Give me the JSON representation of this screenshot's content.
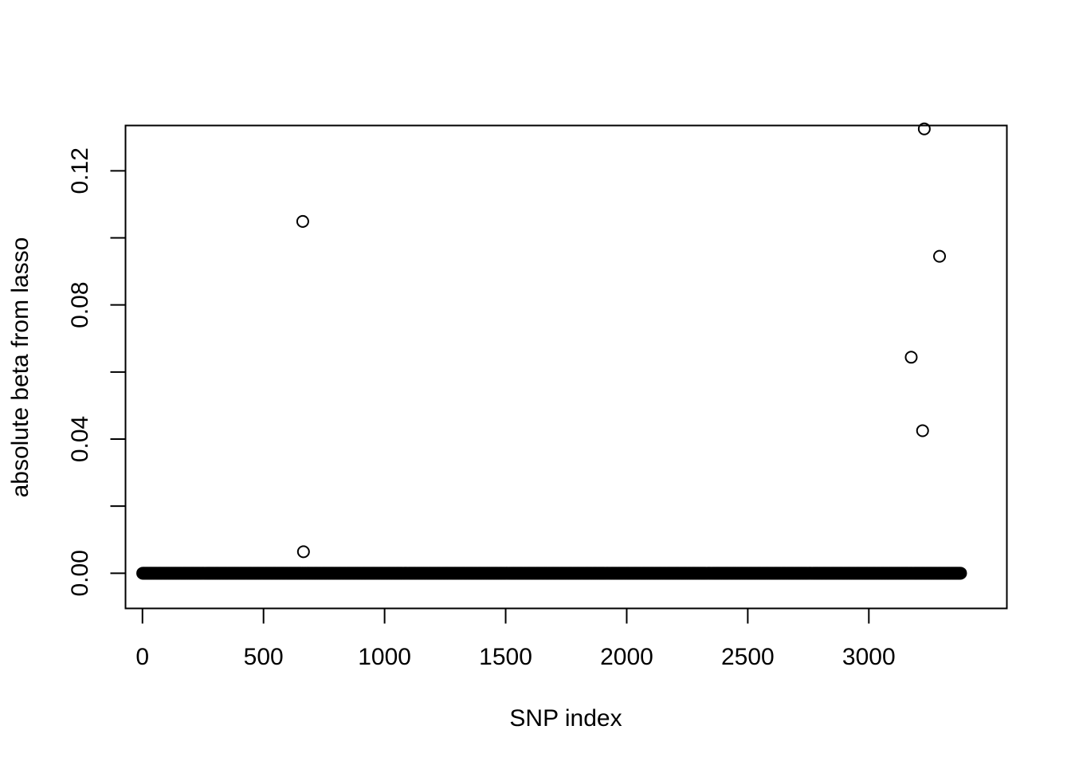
{
  "chart_data": {
    "type": "scatter",
    "title": "",
    "xlabel": "SNP index",
    "ylabel": "absolute beta from lasso",
    "xlim": [
      -70,
      3570
    ],
    "ylim": [
      -0.0105,
      0.1335
    ],
    "x_ticks": [
      0,
      500,
      1000,
      1500,
      2000,
      2500,
      3000
    ],
    "x_tick_labels": [
      "0",
      "500",
      "1000",
      "1500",
      "2000",
      "2500",
      "3000"
    ],
    "y_ticks": [
      0.0,
      0.02,
      0.04,
      0.06,
      0.08,
      0.1,
      0.12
    ],
    "y_tick_labels": [
      "0.00",
      "",
      "0.04",
      "",
      "0.08",
      "",
      "0.12"
    ],
    "grid": false,
    "legend": "none",
    "marker": "open-circle",
    "baseline_run": {
      "x_start": 1,
      "x_end": 3380,
      "y": 0.0
    },
    "points": [
      {
        "x": 662,
        "y": 0.1049
      },
      {
        "x": 665,
        "y": 0.0064
      },
      {
        "x": 3175,
        "y": 0.0644
      },
      {
        "x": 3222,
        "y": 0.0425
      },
      {
        "x": 3229,
        "y": 0.1325
      },
      {
        "x": 3292,
        "y": 0.0945
      }
    ],
    "colors": {
      "marker": "#000000",
      "axis": "#000000",
      "background": "#ffffff"
    }
  }
}
